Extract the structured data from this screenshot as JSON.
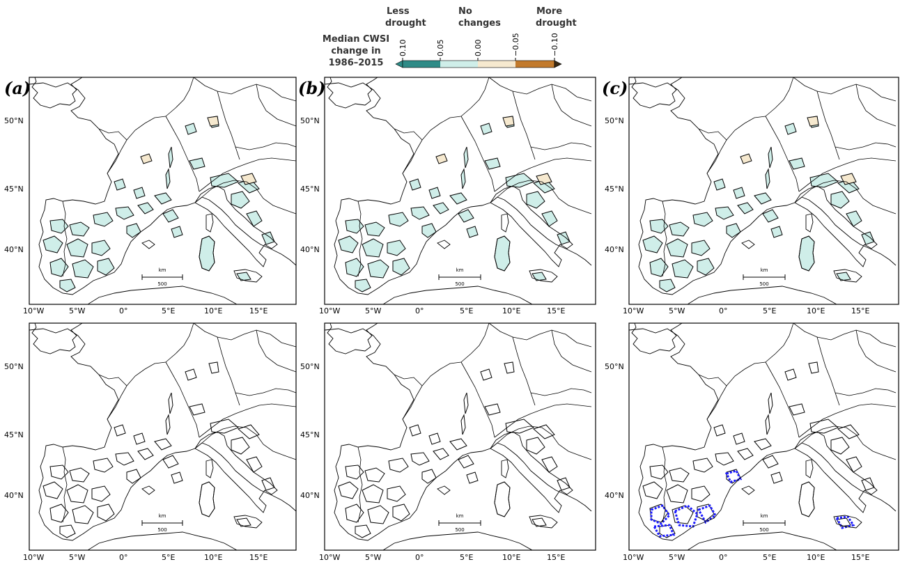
{
  "legend": {
    "title_lines": [
      "Median CWSI",
      "change in",
      "1986–2015"
    ],
    "less_lines": [
      "Less",
      "drought"
    ],
    "nochange_lines": [
      "No",
      "changes"
    ],
    "more_lines": [
      "More",
      "drought"
    ],
    "ticks": [
      "0.10",
      "0.05",
      "0.00",
      "−0.05",
      "−0.10"
    ],
    "colors": [
      "#2e8b87",
      "#cfeee9",
      "#f6e9cf",
      "#c27a2c"
    ],
    "extend": "both"
  },
  "panels": [
    {
      "letter": "(a)"
    },
    {
      "letter": "(b)"
    },
    {
      "letter": "(c)"
    }
  ],
  "axes": {
    "lon_ticks": [
      "10°W",
      "5°W",
      "0°",
      "5°E",
      "10°E",
      "15°E"
    ],
    "lat_ticks": [
      "50°N",
      "45°N",
      "40°N"
    ]
  },
  "scalebar": {
    "unit": "km",
    "value": "500"
  },
  "colors": {
    "no_change_fill": "#cfeee9",
    "more_drought_fill": "#f6e9cf",
    "significant_outline": "#1a1aff",
    "land_outline": "#000000"
  }
}
